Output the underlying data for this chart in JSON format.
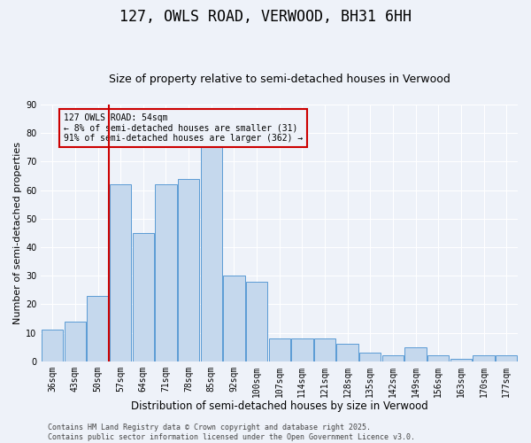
{
  "title": "127, OWLS ROAD, VERWOOD, BH31 6HH",
  "subtitle": "Size of property relative to semi-detached houses in Verwood",
  "xlabel": "Distribution of semi-detached houses by size in Verwood",
  "ylabel": "Number of semi-detached properties",
  "categories": [
    "36sqm",
    "43sqm",
    "50sqm",
    "57sqm",
    "64sqm",
    "71sqm",
    "78sqm",
    "85sqm",
    "92sqm",
    "100sqm",
    "107sqm",
    "114sqm",
    "121sqm",
    "128sqm",
    "135sqm",
    "142sqm",
    "149sqm",
    "156sqm",
    "163sqm",
    "170sqm",
    "177sqm"
  ],
  "values": [
    11,
    14,
    23,
    62,
    45,
    62,
    64,
    76,
    30,
    28,
    8,
    8,
    8,
    6,
    3,
    2,
    5,
    2,
    1,
    2,
    2
  ],
  "bar_color": "#c5d8ed",
  "bar_edge_color": "#5b9bd5",
  "vline_x_index": 2,
  "vline_color": "#cc0000",
  "annotation_text": "127 OWLS ROAD: 54sqm\n← 8% of semi-detached houses are smaller (31)\n91% of semi-detached houses are larger (362) →",
  "annotation_box_color": "#cc0000",
  "ylim": [
    0,
    90
  ],
  "yticks": [
    0,
    10,
    20,
    30,
    40,
    50,
    60,
    70,
    80,
    90
  ],
  "background_color": "#eef2f9",
  "grid_color": "#ffffff",
  "footer": "Contains HM Land Registry data © Crown copyright and database right 2025.\nContains public sector information licensed under the Open Government Licence v3.0.",
  "title_fontsize": 12,
  "subtitle_fontsize": 9,
  "xlabel_fontsize": 8.5,
  "ylabel_fontsize": 8,
  "tick_fontsize": 7,
  "annotation_fontsize": 7,
  "footer_fontsize": 6
}
